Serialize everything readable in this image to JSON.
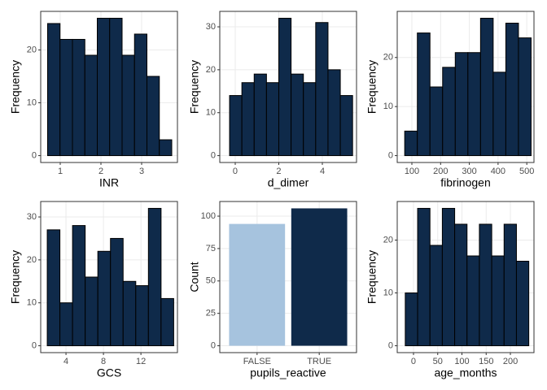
{
  "chart_data": [
    {
      "type": "histogram",
      "xlabel": "INR",
      "ylabel": "Frequency",
      "color": "#0f2a4a",
      "bins": [
        0.69,
        0.995,
        1.3,
        1.605,
        1.91,
        2.215,
        2.52,
        2.825,
        3.13,
        3.435,
        3.74
      ],
      "values": [
        25,
        22,
        22,
        19,
        26,
        26,
        19,
        23,
        15,
        3
      ],
      "xlim": [
        0.52,
        3.88
      ],
      "xticks": [
        1,
        2,
        3
      ],
      "ylim": [
        -1.3,
        27.3
      ],
      "yticks": [
        0,
        10,
        20
      ],
      "grid": true
    },
    {
      "type": "histogram",
      "xlabel": "d_dimer",
      "ylabel": "Frequency",
      "color": "#0f2a4a",
      "bins": [
        -0.26,
        0.305,
        0.87,
        1.435,
        2.0,
        2.565,
        3.13,
        3.695,
        4.26,
        4.825,
        5.39
      ],
      "values": [
        14,
        17,
        19,
        17,
        32,
        19,
        17,
        31,
        20,
        14
      ],
      "xlim": [
        -0.71,
        5.57
      ],
      "xticks": [
        0,
        2,
        4
      ],
      "ylim": [
        -1.6,
        33.6
      ],
      "yticks": [
        0,
        10,
        20,
        30
      ],
      "grid": true
    },
    {
      "type": "histogram",
      "xlabel": "fibrinogen",
      "ylabel": "Frequency",
      "color": "#0f2a4a",
      "bins": [
        75,
        119,
        163,
        207,
        251,
        295,
        339,
        383,
        427,
        471,
        515
      ],
      "values": [
        5,
        25,
        14,
        18,
        21,
        21,
        28,
        17,
        27,
        24
      ],
      "xlim": [
        49,
        525
      ],
      "xticks": [
        100,
        200,
        300,
        400,
        500
      ],
      "ylim": [
        -1.4,
        29.4
      ],
      "yticks": [
        0,
        10,
        20
      ],
      "grid": true
    },
    {
      "type": "histogram",
      "xlabel": "GCS",
      "ylabel": "Frequency",
      "color": "#0f2a4a",
      "bins": [
        2.0,
        3.35,
        4.7,
        6.05,
        7.4,
        8.75,
        10.1,
        11.45,
        12.8,
        14.15,
        15.5
      ],
      "values": [
        27,
        10,
        28,
        16,
        22,
        25,
        15,
        14,
        32,
        11
      ],
      "xlim": [
        1.3,
        15.9
      ],
      "xticks": [
        4,
        8,
        12
      ],
      "ylim": [
        -1.6,
        33.6
      ],
      "yticks": [
        0,
        10,
        20,
        30
      ],
      "grid": true
    },
    {
      "type": "bar",
      "xlabel": "pupils_reactive",
      "ylabel": "Count",
      "categories": [
        "FALSE",
        "TRUE"
      ],
      "values": [
        94,
        106
      ],
      "colors": [
        "#a6c3de",
        "#0f2a4a"
      ],
      "ylim": [
        -5.3,
        111.3
      ],
      "yticks": [
        0,
        25,
        50,
        75,
        100
      ],
      "grid": true
    },
    {
      "type": "histogram",
      "xlabel": "age_months",
      "ylabel": "Frequency",
      "color": "#0f2a4a",
      "bins": [
        -17,
        8.5,
        34,
        59.5,
        85,
        110.5,
        136,
        161.5,
        187,
        212.5,
        238
      ],
      "values": [
        10,
        26,
        19,
        26,
        23,
        17,
        23,
        17,
        23,
        16
      ],
      "xlim": [
        -33.6,
        248.7
      ],
      "xticks": [
        0,
        50,
        100,
        150,
        200
      ],
      "ylim": [
        -1.3,
        27.3
      ],
      "yticks": [
        0,
        10,
        20
      ],
      "grid": true
    }
  ]
}
